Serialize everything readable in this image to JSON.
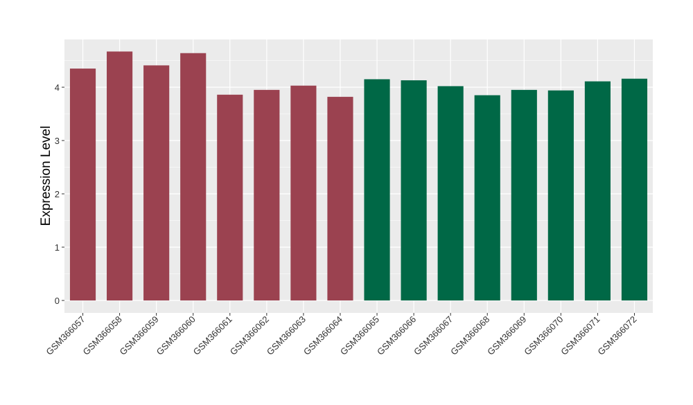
{
  "chart_data": {
    "type": "bar",
    "title": "",
    "xlabel": "",
    "ylabel": "Expression Level",
    "ylim": [
      0,
      4.9
    ],
    "yticks": [
      0,
      1,
      2,
      3,
      4
    ],
    "grid": true,
    "legend": "none",
    "categories": [
      "GSM366057",
      "GSM366058",
      "GSM366059",
      "GSM366060",
      "GSM366061",
      "GSM366062",
      "GSM366063",
      "GSM366064",
      "GSM366065",
      "GSM366066",
      "GSM366067",
      "GSM366068",
      "GSM366069",
      "GSM366070",
      "GSM366071",
      "GSM366072"
    ],
    "values": [
      4.35,
      4.67,
      4.41,
      4.64,
      3.86,
      3.95,
      4.03,
      3.82,
      4.15,
      4.13,
      4.02,
      3.85,
      3.95,
      3.94,
      4.11,
      4.16
    ],
    "bar_colors": [
      "#9b4250",
      "#9b4250",
      "#9b4250",
      "#9b4250",
      "#9b4250",
      "#9b4250",
      "#9b4250",
      "#9b4250",
      "#006846",
      "#006846",
      "#006846",
      "#006846",
      "#006846",
      "#006846",
      "#006846",
      "#006846"
    ],
    "panel_background": "#ebebeb",
    "grid_color": "#ffffff"
  }
}
